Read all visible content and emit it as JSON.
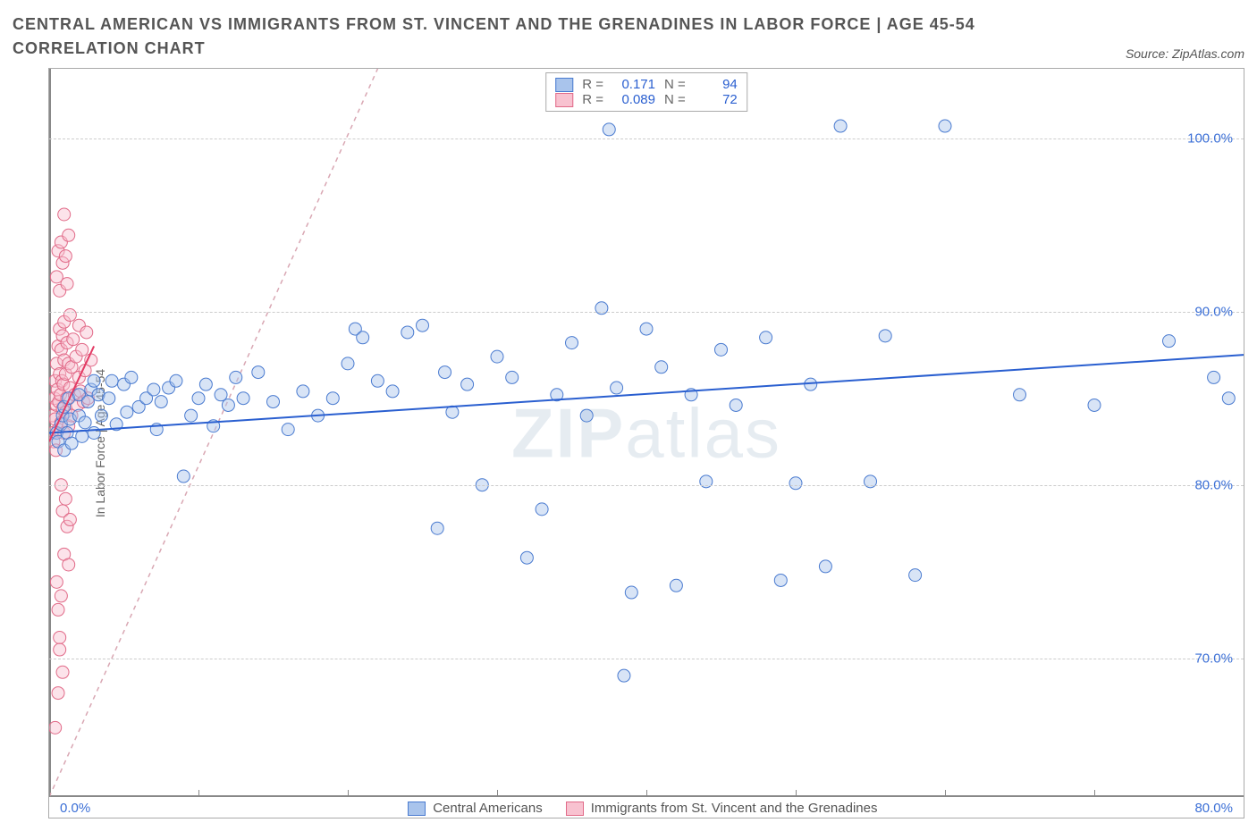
{
  "title": "CENTRAL AMERICAN VS IMMIGRANTS FROM ST. VINCENT AND THE GRENADINES IN LABOR FORCE | AGE 45-54 CORRELATION CHART",
  "source_label": "Source: ZipAtlas.com",
  "watermark_prefix": "ZIP",
  "watermark_suffix": "atlas",
  "chart": {
    "type": "scatter",
    "y_axis_label": "In Labor Force | Age 45-54",
    "x_range": [
      0,
      80
    ],
    "y_range": [
      62,
      104
    ],
    "background_color": "#ffffff",
    "grid_color": "#cccccc",
    "axis_color": "#888888",
    "x_tick_positions": [
      0,
      10,
      20,
      30,
      40,
      50,
      60,
      70,
      80
    ],
    "x_start_label": "0.0%",
    "x_end_label": "80.0%",
    "y_ticks": [
      {
        "v": 70,
        "label": "70.0%"
      },
      {
        "v": 80,
        "label": "80.0%"
      },
      {
        "v": 90,
        "label": "90.0%"
      },
      {
        "v": 100,
        "label": "100.0%"
      }
    ],
    "marker_radius": 7,
    "marker_opacity": 0.45,
    "trend_line_width": 2,
    "identity_line": {
      "from": [
        0,
        62
      ],
      "to": [
        22,
        104
      ],
      "color": "#d9a7b3",
      "dash": "5,5"
    }
  },
  "series": {
    "a": {
      "name": "Central Americans",
      "color": "#7ea6e0",
      "stroke": "#4a7bd0",
      "fill": "#a9c4ec",
      "R_label": "R =",
      "R": "0.171",
      "N_label": "N =",
      "N": "94",
      "trend": {
        "from": [
          0,
          83
        ],
        "to": [
          80,
          87.5
        ],
        "color": "#2a5fd0"
      },
      "points": [
        [
          0.5,
          83
        ],
        [
          0.6,
          82.5
        ],
        [
          0.8,
          83.5
        ],
        [
          0.9,
          84
        ],
        [
          1,
          82
        ],
        [
          1,
          84.5
        ],
        [
          1.2,
          83
        ],
        [
          1.3,
          85
        ],
        [
          1.4,
          83.8
        ],
        [
          1.5,
          82.4
        ],
        [
          2,
          84
        ],
        [
          2,
          85.2
        ],
        [
          2.2,
          82.8
        ],
        [
          2.4,
          83.6
        ],
        [
          2.6,
          84.8
        ],
        [
          2.8,
          85.5
        ],
        [
          3,
          83
        ],
        [
          3,
          86
        ],
        [
          3.3,
          85.2
        ],
        [
          3.5,
          84
        ],
        [
          4,
          85
        ],
        [
          4.2,
          86
        ],
        [
          4.5,
          83.5
        ],
        [
          5,
          85.8
        ],
        [
          5.2,
          84.2
        ],
        [
          5.5,
          86.2
        ],
        [
          6,
          84.5
        ],
        [
          6.5,
          85
        ],
        [
          7,
          85.5
        ],
        [
          7.2,
          83.2
        ],
        [
          7.5,
          84.8
        ],
        [
          8,
          85.6
        ],
        [
          8.5,
          86
        ],
        [
          9,
          80.5
        ],
        [
          9.5,
          84
        ],
        [
          10,
          85
        ],
        [
          10.5,
          85.8
        ],
        [
          11,
          83.4
        ],
        [
          11.5,
          85.2
        ],
        [
          12,
          84.6
        ],
        [
          12.5,
          86.2
        ],
        [
          13,
          85
        ],
        [
          14,
          86.5
        ],
        [
          15,
          84.8
        ],
        [
          16,
          83.2
        ],
        [
          17,
          85.4
        ],
        [
          18,
          84
        ],
        [
          19,
          85
        ],
        [
          20,
          87
        ],
        [
          20.5,
          89
        ],
        [
          21,
          88.5
        ],
        [
          22,
          86
        ],
        [
          23,
          85.4
        ],
        [
          24,
          88.8
        ],
        [
          25,
          89.2
        ],
        [
          26,
          77.5
        ],
        [
          26.5,
          86.5
        ],
        [
          27,
          84.2
        ],
        [
          28,
          85.8
        ],
        [
          29,
          80
        ],
        [
          30,
          87.4
        ],
        [
          31,
          86.2
        ],
        [
          32,
          75.8
        ],
        [
          33,
          78.6
        ],
        [
          34,
          85.2
        ],
        [
          35,
          88.2
        ],
        [
          36,
          84
        ],
        [
          37,
          90.2
        ],
        [
          37.5,
          100.5
        ],
        [
          38,
          85.6
        ],
        [
          38.5,
          69
        ],
        [
          39,
          73.8
        ],
        [
          40,
          89
        ],
        [
          41,
          86.8
        ],
        [
          42,
          74.2
        ],
        [
          43,
          85.2
        ],
        [
          44,
          80.2
        ],
        [
          45,
          87.8
        ],
        [
          46,
          84.6
        ],
        [
          48,
          88.5
        ],
        [
          49,
          74.5
        ],
        [
          50,
          80.1
        ],
        [
          51,
          85.8
        ],
        [
          52,
          75.3
        ],
        [
          53,
          100.7
        ],
        [
          55,
          80.2
        ],
        [
          56,
          88.6
        ],
        [
          58,
          74.8
        ],
        [
          60,
          100.7
        ],
        [
          65,
          85.2
        ],
        [
          70,
          84.6
        ],
        [
          75,
          88.3
        ],
        [
          78,
          86.2
        ],
        [
          79,
          85
        ]
      ]
    },
    "b": {
      "name": "Immigrants from St. Vincent and the Grenadines",
      "color": "#f29fb3",
      "stroke": "#e16a88",
      "fill": "#f8c2d0",
      "R_label": "R =",
      "R": "0.089",
      "N_label": "N =",
      "N": "72",
      "trend": {
        "from": [
          0,
          82.5
        ],
        "to": [
          3,
          88
        ],
        "color": "#e33a64"
      },
      "points": [
        [
          0.2,
          83
        ],
        [
          0.25,
          84
        ],
        [
          0.3,
          82.5
        ],
        [
          0.35,
          85
        ],
        [
          0.4,
          83.8
        ],
        [
          0.4,
          86
        ],
        [
          0.45,
          82
        ],
        [
          0.5,
          84.6
        ],
        [
          0.5,
          87
        ],
        [
          0.55,
          85.5
        ],
        [
          0.6,
          83.2
        ],
        [
          0.6,
          88
        ],
        [
          0.65,
          84.8
        ],
        [
          0.7,
          86.4
        ],
        [
          0.7,
          89
        ],
        [
          0.75,
          85.2
        ],
        [
          0.8,
          83.6
        ],
        [
          0.8,
          87.8
        ],
        [
          0.85,
          86
        ],
        [
          0.9,
          84.4
        ],
        [
          0.9,
          88.6
        ],
        [
          0.95,
          85.8
        ],
        [
          1,
          83
        ],
        [
          1,
          87.2
        ],
        [
          1,
          89.4
        ],
        [
          1.1,
          84.2
        ],
        [
          1.1,
          86.4
        ],
        [
          1.2,
          85
        ],
        [
          1.2,
          88.2
        ],
        [
          1.3,
          83.4
        ],
        [
          1.3,
          87
        ],
        [
          1.4,
          85.6
        ],
        [
          1.4,
          89.8
        ],
        [
          1.5,
          84
        ],
        [
          1.5,
          86.8
        ],
        [
          1.6,
          88.4
        ],
        [
          1.7,
          85.2
        ],
        [
          1.8,
          87.4
        ],
        [
          1.9,
          84.6
        ],
        [
          2,
          86.2
        ],
        [
          2,
          89.2
        ],
        [
          2.1,
          85.4
        ],
        [
          2.2,
          87.8
        ],
        [
          2.3,
          84.8
        ],
        [
          2.4,
          86.6
        ],
        [
          2.5,
          88.8
        ],
        [
          2.6,
          85
        ],
        [
          2.8,
          87.2
        ],
        [
          0.5,
          92
        ],
        [
          0.6,
          93.5
        ],
        [
          0.7,
          91.2
        ],
        [
          0.8,
          94
        ],
        [
          0.9,
          92.8
        ],
        [
          1,
          95.6
        ],
        [
          1.1,
          93.2
        ],
        [
          1.2,
          91.6
        ],
        [
          1.3,
          94.4
        ],
        [
          0.8,
          80
        ],
        [
          0.9,
          78.5
        ],
        [
          1,
          76
        ],
        [
          1.1,
          79.2
        ],
        [
          1.2,
          77.6
        ],
        [
          1.3,
          75.4
        ],
        [
          1.4,
          78
        ],
        [
          0.6,
          72.8
        ],
        [
          0.7,
          71.2
        ],
        [
          0.8,
          73.6
        ],
        [
          0.5,
          74.4
        ],
        [
          0.4,
          66
        ],
        [
          0.6,
          68
        ],
        [
          0.7,
          70.5
        ],
        [
          0.9,
          69.2
        ]
      ]
    }
  },
  "bottom_legend": {
    "a": "Central Americans",
    "b": "Immigrants from St. Vincent and the Grenadines"
  }
}
